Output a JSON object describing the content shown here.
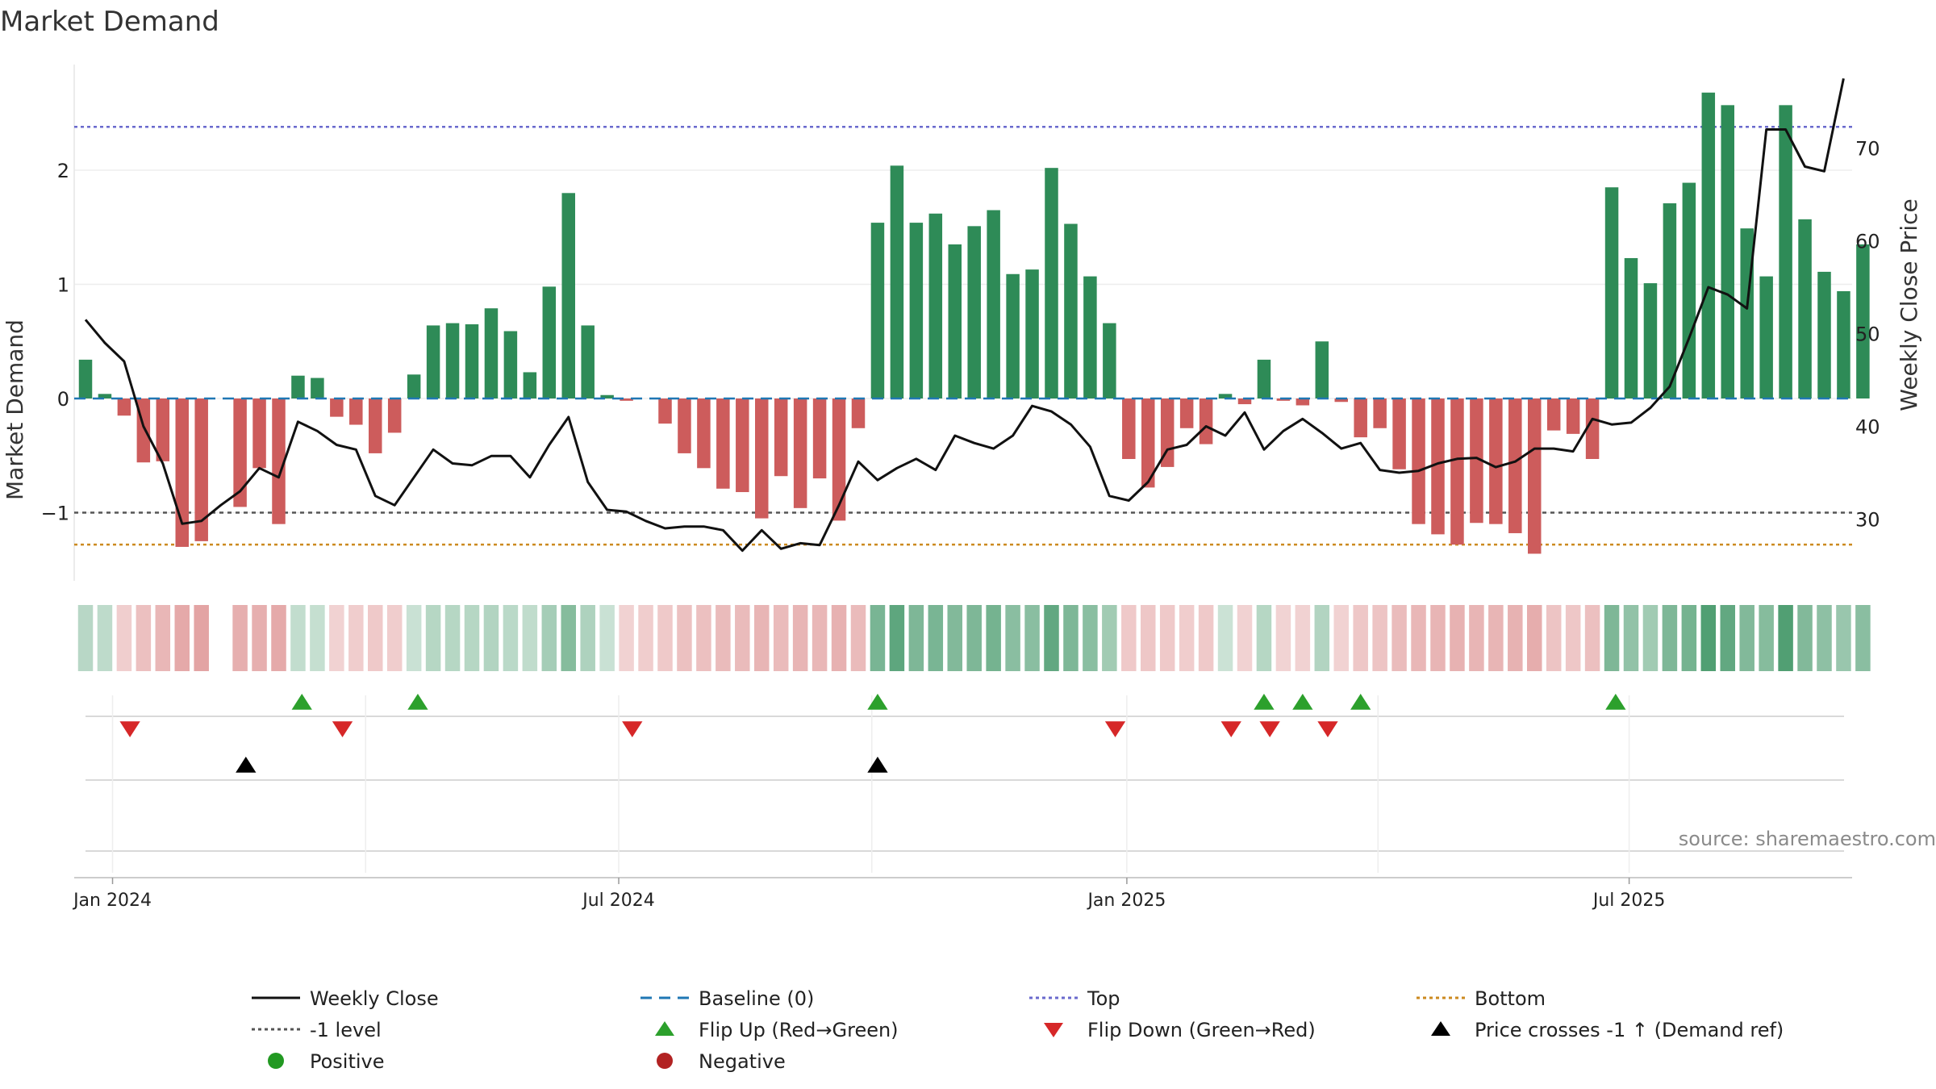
{
  "chart_data": {
    "type": "bar",
    "title": "Market Demand",
    "ylabel": "Market Demand",
    "y2label": "Weekly Close Price",
    "ylim": [
      -1.6,
      2.9
    ],
    "y2lim": [
      22,
      78
    ],
    "yticks": [
      "−1",
      "0",
      "1",
      "2"
    ],
    "y2ticks": [
      "30",
      "40",
      "50",
      "60",
      "70"
    ],
    "x_tick_labels": [
      "Jan 2024",
      "Jul 2024",
      "Jan 2025",
      "Jul 2025"
    ],
    "x_tick_weeks": [
      1.4,
      27.6,
      53.9,
      79.9
    ],
    "top_level": 2.38,
    "bottom_level": -1.28,
    "minus_one_level": -1,
    "baseline": 0,
    "demand": [
      0.34,
      0.04,
      -0.15,
      -0.56,
      -0.55,
      -1.3,
      -1.25,
      0,
      -0.95,
      -0.61,
      -1.1,
      0.2,
      0.18,
      -0.16,
      -0.23,
      -0.48,
      -0.3,
      0.21,
      0.64,
      0.66,
      0.65,
      0.79,
      0.59,
      0.23,
      0.98,
      1.8,
      0.64,
      0.03,
      -0.02,
      0,
      -0.22,
      -0.48,
      -0.61,
      -0.79,
      -0.82,
      -1.05,
      -0.68,
      -0.96,
      -0.7,
      -1.07,
      -0.26,
      1.54,
      2.04,
      1.54,
      1.62,
      1.35,
      1.51,
      1.65,
      1.09,
      1.13,
      2.02,
      1.53,
      1.07,
      0.66,
      -0.53,
      -0.78,
      -0.6,
      -0.26,
      -0.4,
      0.04,
      -0.05,
      0.34,
      -0.02,
      -0.06,
      0.5,
      -0.03,
      -0.34,
      -0.26,
      -0.62,
      -1.1,
      -1.19,
      -1.28,
      -1.09,
      -1.1,
      -1.18,
      -1.36,
      -0.28,
      -0.31,
      -0.53,
      1.85,
      1.23,
      1.01,
      1.71,
      1.89,
      2.68,
      2.57,
      1.49,
      1.07,
      2.57,
      1.57,
      1.11,
      0.94,
      1.35
    ],
    "price": [
      51.5,
      49,
      47,
      40,
      36,
      29.5,
      29.8,
      31.5,
      33,
      35.5,
      34.5,
      40.5,
      39.5,
      38,
      37.5,
      32.5,
      31.5,
      34.5,
      37.5,
      36,
      35.8,
      36.8,
      36.8,
      34.5,
      38,
      41,
      34,
      31,
      30.8,
      29.8,
      29,
      29.2,
      29.2,
      28.8,
      26.6,
      28.8,
      26.8,
      27.4,
      27.2,
      31.5,
      36.2,
      34.2,
      35.5,
      36.5,
      35.3,
      39,
      38.2,
      37.6,
      39,
      42.2,
      41.6,
      40.2,
      37.8,
      32.5,
      32,
      34,
      37.5,
      38,
      40,
      39,
      41.5,
      37.5,
      39.5,
      40.8,
      39.3,
      37.6,
      38.2,
      35.3,
      35,
      35.2,
      36,
      36.5,
      36.6,
      35.6,
      36.2,
      37.6,
      37.6,
      37.3,
      40.8,
      40.2,
      40.4,
      42,
      44.3,
      49.5,
      55,
      54.2,
      52.7,
      72,
      72,
      68,
      67.5,
      77.5
    ],
    "shading": [
      0.34,
      0.26,
      -0.15,
      -0.45,
      -0.6,
      -0.9,
      -1.0,
      null,
      -0.75,
      -0.75,
      -0.85,
      0.22,
      0.2,
      -0.1,
      -0.18,
      -0.25,
      -0.2,
      0.15,
      0.35,
      0.35,
      0.35,
      0.4,
      0.3,
      0.25,
      0.55,
      0.9,
      0.45,
      0.15,
      -0.1,
      -0.18,
      -0.25,
      -0.42,
      -0.45,
      -0.55,
      -0.55,
      -0.65,
      -0.55,
      -0.65,
      -0.6,
      -0.72,
      -0.55,
      1.05,
      1.35,
      1.0,
      1.05,
      0.95,
      1.0,
      1.1,
      0.85,
      0.85,
      1.3,
      1.0,
      0.85,
      0.6,
      -0.25,
      -0.3,
      -0.25,
      -0.2,
      -0.25,
      0.12,
      -0.1,
      0.35,
      -0.05,
      -0.1,
      0.4,
      -0.1,
      -0.3,
      -0.35,
      -0.5,
      -0.6,
      -0.62,
      -0.7,
      -0.65,
      -0.65,
      -0.7,
      -0.8,
      -0.35,
      -0.3,
      -0.45,
      1.0,
      0.75,
      0.6,
      1.0,
      1.1,
      1.5,
      1.3,
      0.95,
      0.9,
      1.5,
      0.95,
      0.8,
      0.7,
      0.85
    ],
    "flip_up_weeks": [
      11.2,
      17.2,
      41,
      61,
      63,
      66,
      79.2
    ],
    "flip_down_weeks": [
      2.3,
      13.3,
      28.3,
      53.3,
      59.3,
      61.3,
      64.3
    ],
    "price_cross_weeks": [
      8.3,
      41
    ],
    "series_colors": {
      "positive": "#2e8b57",
      "negative": "#cd5c5c",
      "weekly_close": "#111111",
      "baseline": "#1f77b4",
      "top": "#6a6acd",
      "bottom": "#cc8a1f",
      "minus_one": "#555555",
      "flip_up": "#2ca02c",
      "flip_down": "#d62728",
      "cross": "#000000",
      "legend_positive": "#229922",
      "legend_negative": "#b22222"
    }
  },
  "legend": {
    "items": [
      {
        "label": "Weekly Close",
        "kind": "line-solid",
        "color": "#111111"
      },
      {
        "label": "Baseline (0)",
        "kind": "line-dash",
        "color": "#1f77b4"
      },
      {
        "label": "Top",
        "kind": "line-dot",
        "color": "#6a6acd"
      },
      {
        "label": "Bottom",
        "kind": "line-dot",
        "color": "#cc8a1f"
      },
      {
        "label": "-1 level",
        "kind": "line-dot",
        "color": "#555555"
      },
      {
        "label": "Flip Up (Red→Green)",
        "kind": "tri-up",
        "color": "#2ca02c"
      },
      {
        "label": "Flip Down (Green→Red)",
        "kind": "tri-down",
        "color": "#d62728"
      },
      {
        "label": "Price crosses -1 ↑ (Demand ref)",
        "kind": "tri-up",
        "color": "#000000"
      },
      {
        "label": "Positive",
        "kind": "circle",
        "color": "#229922"
      },
      {
        "label": "Negative",
        "kind": "circle",
        "color": "#b22222"
      }
    ]
  },
  "source_text": "source: sharemaestro.com"
}
